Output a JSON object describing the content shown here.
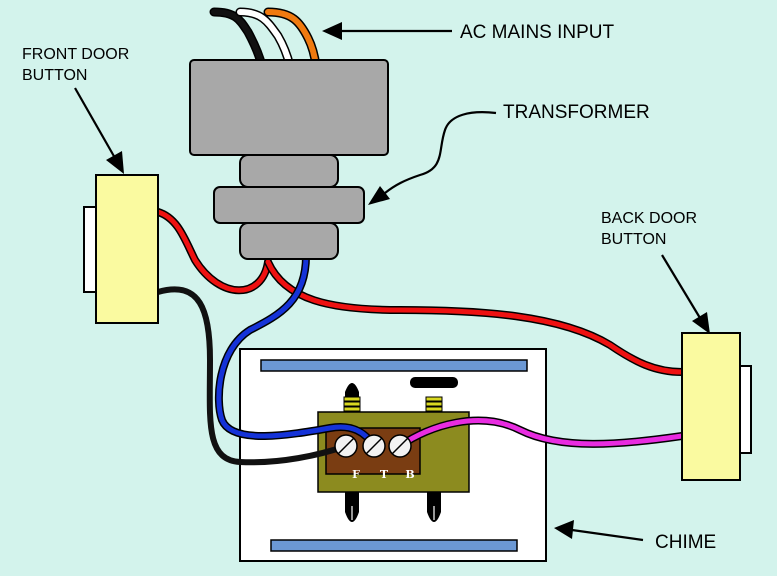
{
  "labels": {
    "ac_mains": "AC MAINS INPUT",
    "transformer": "TRANSFORMER",
    "front_door_line1": "FRONT DOOR",
    "front_door_line2": "BUTTON",
    "back_door_line1": "BACK DOOR",
    "back_door_line2": "BUTTON",
    "chime": "CHIME"
  },
  "terminals": [
    "F",
    "T",
    "B"
  ],
  "colors": {
    "background": "#d3f3ec",
    "transformer": "#a8a8a8",
    "button": "#fafaa0",
    "chime_box": "#ffffff",
    "terminal_block": "#8c8b1f",
    "terminal_plate": "#7a3d12",
    "chime_bar": "#6b98d4",
    "spring": "#d8d820",
    "wire_red": "#ee1111",
    "wire_blue": "#1533d8",
    "wire_black": "#111111",
    "wire_magenta": "#e82ce0",
    "wire_white": "#ffffff",
    "wire_orange": "#f07a10"
  }
}
